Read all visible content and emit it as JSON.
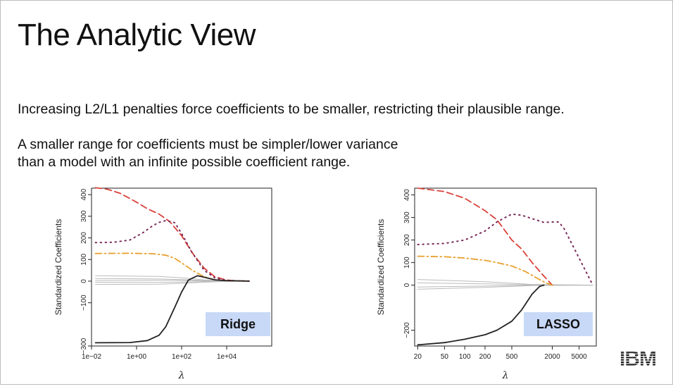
{
  "slide": {
    "title": "The Analytic View",
    "line1": "Increasing L2/L1 penalties force coefficients to be smaller, restricting their plausible range.",
    "line2": "A smaller range for coefficients must be simpler/lower variance",
    "line3": "than a model with an infinite possible coefficient range.",
    "logo_text": "IBM"
  },
  "chart_data": [
    {
      "type": "line",
      "badge": "Ridge",
      "ylabel": "Standardized Coefficients",
      "xlabel": "λ",
      "x_scale": "log",
      "xlim": [
        0.01,
        1000000
      ],
      "ylim": [
        -300,
        430
      ],
      "x_ticks": [
        0.01,
        1,
        100,
        10000
      ],
      "x_tick_labels": [
        "1e−02",
        "1e+00",
        "1e+02",
        "1e+04"
      ],
      "y_ticks": [
        -300,
        -100,
        0,
        100,
        200,
        300,
        400
      ],
      "y_tick_labels": [
        "−300",
        "−100",
        "0",
        "100",
        "200",
        "300",
        "400"
      ],
      "series": [
        {
          "color": "#d9413a",
          "dash": "dashed",
          "x": [
            0.015,
            0.05,
            0.2,
            1,
            3,
            10,
            30,
            100,
            300,
            1000,
            3000,
            10000,
            30000,
            100000
          ],
          "y": [
            432,
            425,
            405,
            365,
            335,
            310,
            275,
            210,
            130,
            60,
            20,
            5,
            1,
            0
          ]
        },
        {
          "color": "#7a2a5a",
          "dash": "dotted",
          "x": [
            0.015,
            0.1,
            0.5,
            2,
            5,
            10,
            20,
            50,
            100,
            300,
            1000,
            3000,
            10000,
            100000
          ],
          "y": [
            178,
            180,
            190,
            225,
            255,
            272,
            280,
            270,
            220,
            130,
            50,
            15,
            3,
            0
          ]
        },
        {
          "color": "#e8a030",
          "dash": "dashdot",
          "x": [
            0.015,
            0.5,
            5,
            20,
            50,
            100,
            300,
            1000,
            3000,
            10000,
            100000
          ],
          "y": [
            128,
            129,
            127,
            120,
            105,
            85,
            50,
            20,
            6,
            2,
            0
          ]
        },
        {
          "color": "#222222",
          "dash": "solid",
          "x": [
            0.015,
            0.5,
            3,
            10,
            20,
            50,
            100,
            200,
            500,
            1000,
            3000,
            10000,
            100000
          ],
          "y": [
            -285,
            -284,
            -275,
            -250,
            -210,
            -120,
            -50,
            5,
            25,
            18,
            6,
            2,
            0
          ]
        },
        {
          "color": "#bbbbbb",
          "dash": "solid",
          "x": [
            0.015,
            10,
            100,
            1000,
            10000,
            100000
          ],
          "y": [
            25,
            22,
            15,
            6,
            1,
            0
          ]
        },
        {
          "color": "#bbbbbb",
          "dash": "solid",
          "x": [
            0.015,
            10,
            100,
            1000,
            10000,
            100000
          ],
          "y": [
            12,
            10,
            7,
            3,
            1,
            0
          ]
        },
        {
          "color": "#bbbbbb",
          "dash": "solid",
          "x": [
            0.015,
            10,
            100,
            1000,
            10000,
            100000
          ],
          "y": [
            -5,
            -6,
            -4,
            -2,
            0,
            0
          ]
        },
        {
          "color": "#bbbbbb",
          "dash": "solid",
          "x": [
            0.015,
            10,
            100,
            1000,
            10000,
            100000
          ],
          "y": [
            -15,
            -14,
            -10,
            -5,
            -1,
            0
          ]
        },
        {
          "color": "#bbbbbb",
          "dash": "solid",
          "x": [
            0.015,
            10,
            100,
            1000,
            10000,
            100000
          ],
          "y": [
            3,
            4,
            3,
            1,
            0,
            0
          ]
        }
      ]
    },
    {
      "type": "line",
      "badge": "LASSO",
      "ylabel": "Standardized Coefficients",
      "xlabel": "λ",
      "x_scale": "log",
      "xlim": [
        18,
        9000
      ],
      "ylim": [
        -270,
        430
      ],
      "x_ticks": [
        20,
        50,
        100,
        200,
        500,
        2000,
        5000
      ],
      "x_tick_labels": [
        "20",
        "50",
        "100",
        "200",
        "500",
        "2000",
        "5000"
      ],
      "y_ticks": [
        -200,
        0,
        100,
        200,
        300,
        400
      ],
      "y_tick_labels": [
        "−200",
        "0",
        "100",
        "200",
        "300",
        "400"
      ],
      "series": [
        {
          "color": "#d9413a",
          "dash": "dashed",
          "x": [
            20,
            50,
            100,
            200,
            300,
            400,
            500,
            700,
            1000,
            1500,
            2000
          ],
          "y": [
            430,
            415,
            385,
            330,
            290,
            240,
            200,
            160,
            100,
            40,
            0
          ]
        },
        {
          "color": "#7a2a5a",
          "dash": "dotted",
          "x": [
            20,
            50,
            100,
            200,
            300,
            400,
            500,
            700,
            1000,
            1500,
            2000,
            2500,
            3000,
            5000,
            8000
          ],
          "y": [
            180,
            185,
            200,
            240,
            280,
            300,
            315,
            310,
            295,
            278,
            280,
            280,
            250,
            120,
            0
          ]
        },
        {
          "color": "#e8a030",
          "dash": "dashdot",
          "x": [
            20,
            50,
            100,
            200,
            300,
            500,
            800,
            1200,
            1600,
            2000
          ],
          "y": [
            128,
            126,
            120,
            110,
            100,
            85,
            60,
            30,
            10,
            0
          ]
        },
        {
          "color": "#222222",
          "dash": "solid",
          "x": [
            20,
            50,
            100,
            200,
            300,
            500,
            700,
            1000,
            1300,
            1500
          ],
          "y": [
            -265,
            -255,
            -240,
            -220,
            -200,
            -160,
            -110,
            -40,
            -5,
            0
          ]
        },
        {
          "color": "#bbbbbb",
          "dash": "solid",
          "x": [
            20,
            200,
            1000,
            8000
          ],
          "y": [
            25,
            15,
            3,
            0
          ]
        },
        {
          "color": "#bbbbbb",
          "dash": "solid",
          "x": [
            20,
            200,
            1000,
            8000
          ],
          "y": [
            10,
            6,
            1,
            0
          ]
        },
        {
          "color": "#bbbbbb",
          "dash": "solid",
          "x": [
            20,
            200,
            1000,
            8000
          ],
          "y": [
            -8,
            -4,
            -1,
            0
          ]
        },
        {
          "color": "#bbbbbb",
          "dash": "solid",
          "x": [
            20,
            200,
            1000,
            8000
          ],
          "y": [
            -18,
            -10,
            -2,
            0
          ]
        }
      ]
    }
  ]
}
